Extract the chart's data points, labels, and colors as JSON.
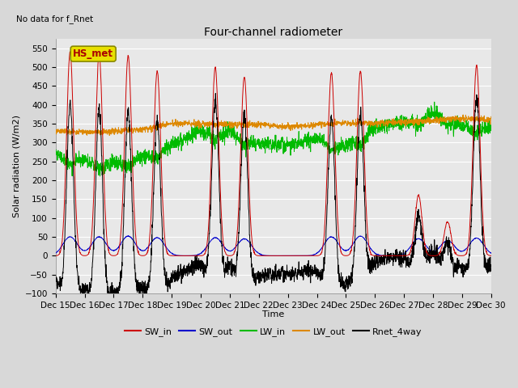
{
  "title": "Four-channel radiometer",
  "top_left_text": "No data for f_Rnet",
  "ylabel": "Solar radiation (W/m2)",
  "xlabel": "Time",
  "ylim": [
    -100,
    575
  ],
  "yticks": [
    -100,
    -50,
    0,
    50,
    100,
    150,
    200,
    250,
    300,
    350,
    400,
    450,
    500,
    550
  ],
  "fig_bg_color": "#d8d8d8",
  "plot_bg_color": "#e8e8e8",
  "annotation_box": "HS_met",
  "annotation_box_facecolor": "#e8e000",
  "annotation_box_edgecolor": "#888800",
  "annotation_text_color": "#aa0000",
  "colors": {
    "SW_in": "#cc0000",
    "SW_out": "#0000cc",
    "LW_in": "#00bb00",
    "LW_out": "#dd8800",
    "Rnet_4way": "#000000"
  },
  "legend_labels": [
    "SW_in",
    "SW_out",
    "LW_in",
    "LW_out",
    "Rnet_4way"
  ],
  "x_tick_labels": [
    "Dec 15",
    "Dec 16",
    "Dec 17",
    "Dec 18",
    "Dec 19",
    "Dec 20",
    "Dec 21",
    "Dec 22",
    "Dec 23",
    "Dec 24",
    "Dec 25",
    "Dec 26",
    "Dec 27",
    "Dec 28",
    "Dec 29",
    "Dec 30"
  ],
  "figsize": [
    6.4,
    4.8
  ],
  "dpi": 100,
  "title_fontsize": 10,
  "label_fontsize": 8,
  "tick_fontsize": 7.5,
  "legend_fontsize": 8
}
